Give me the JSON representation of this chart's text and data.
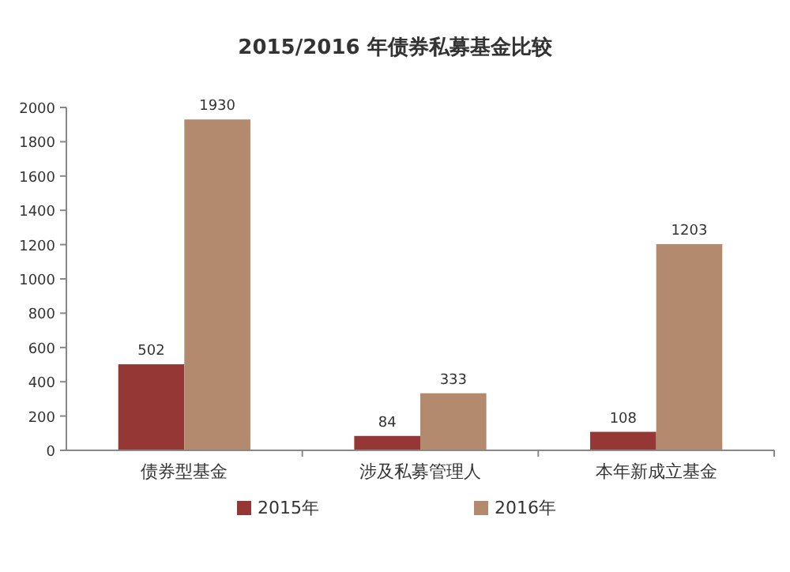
{
  "chart_data": {
    "type": "bar",
    "title": "2015/2016 年债券私募基金比较",
    "categories": [
      "债券型基金",
      "涉及私募管理人",
      "本年新成立基金"
    ],
    "series": [
      {
        "name": "2015年",
        "color": "#953735",
        "values": [
          502,
          84,
          108
        ]
      },
      {
        "name": "2016年",
        "color": "#b48a6e",
        "values": [
          1930,
          333,
          1203
        ]
      }
    ],
    "ylim": [
      0,
      2000
    ],
    "yticks": [
      0,
      200,
      400,
      600,
      800,
      1000,
      1200,
      1400,
      1600,
      1800,
      2000
    ],
    "data_labels": true,
    "legend": "bottom"
  }
}
